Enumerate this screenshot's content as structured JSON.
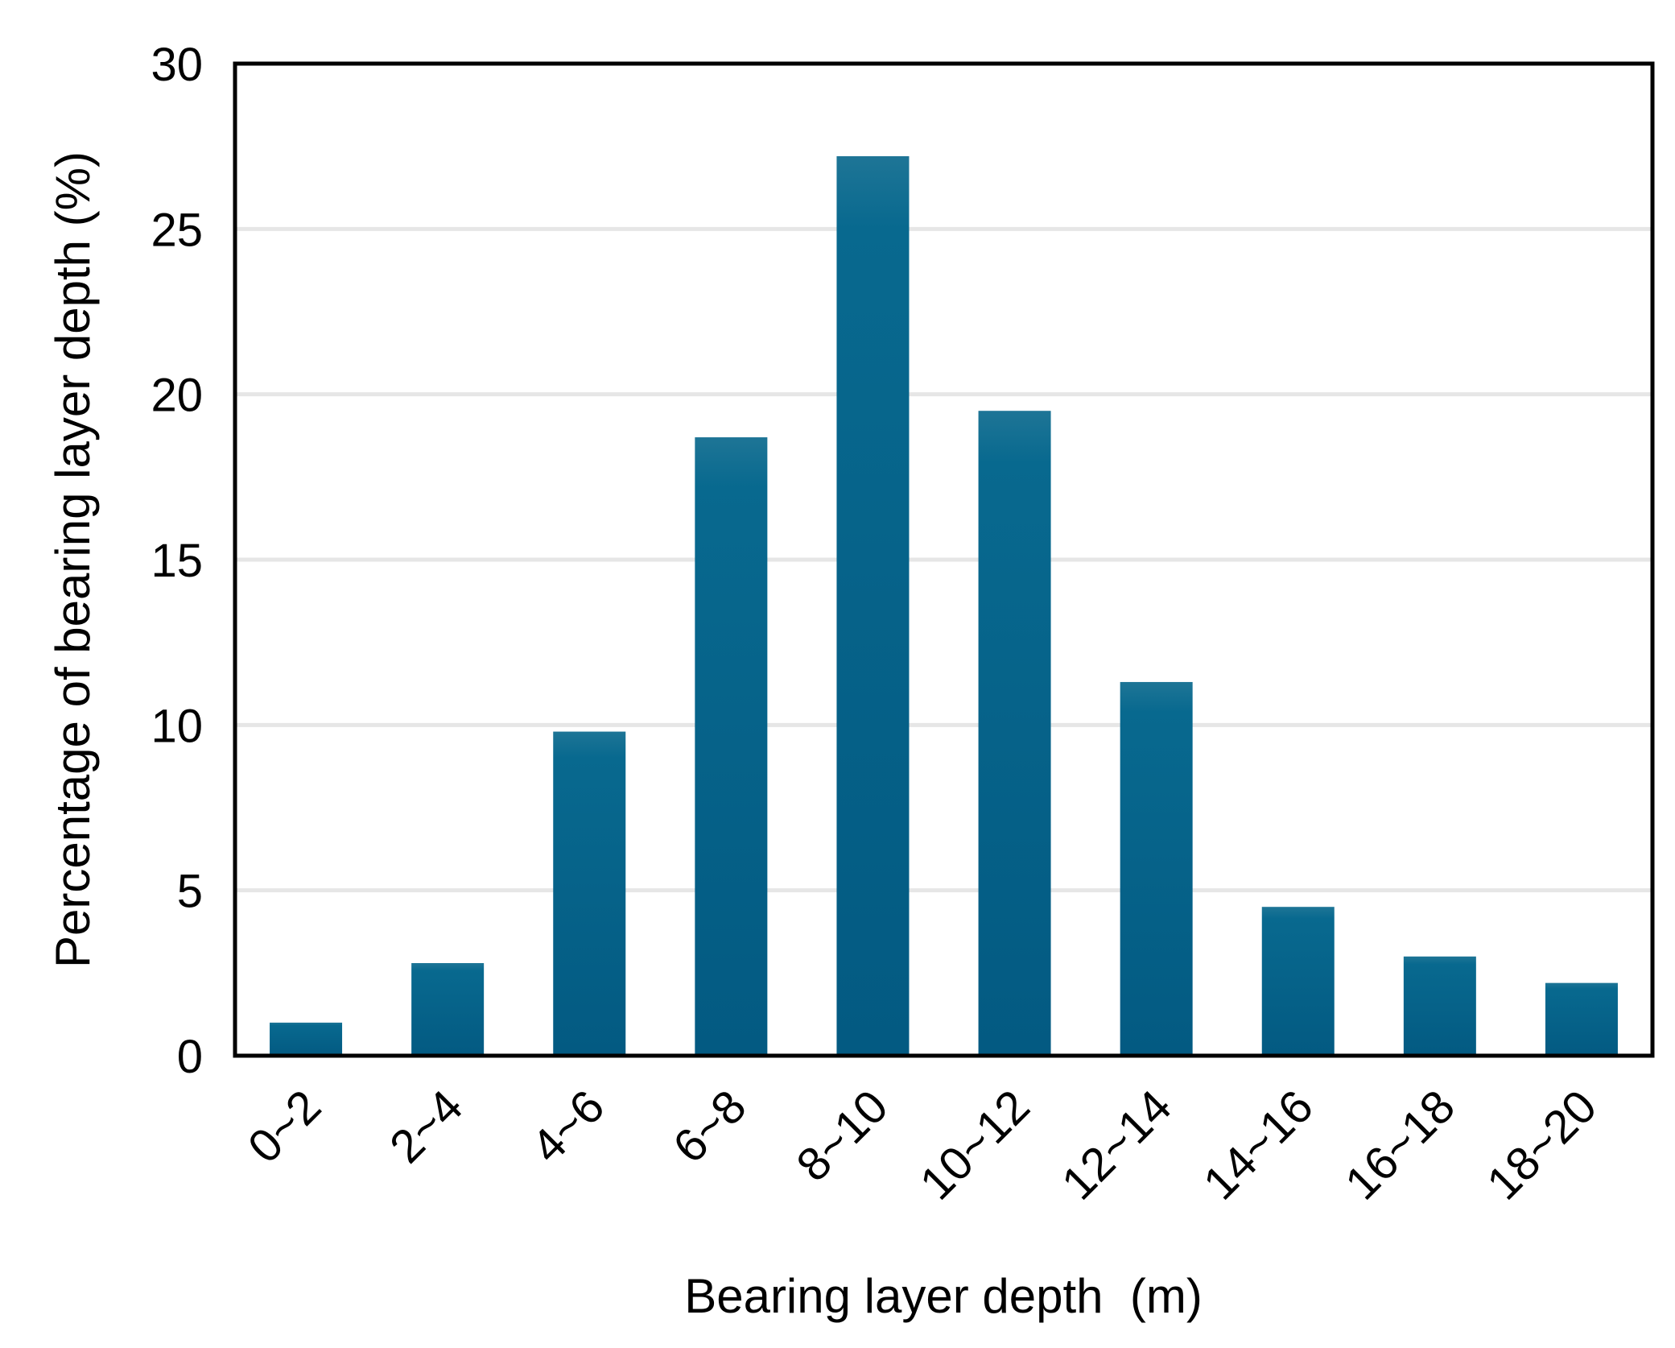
{
  "chart_data": {
    "type": "bar",
    "title": "",
    "xlabel": "Bearing layer depth  (m)",
    "ylabel": "Percentage of bearing layer depth (%)",
    "categories": [
      "0~2",
      "2~4",
      "4~6",
      "6~8",
      "8~10",
      "10~12",
      "12~14",
      "14~16",
      "16~18",
      "18~20"
    ],
    "values": [
      1.0,
      2.8,
      9.8,
      18.7,
      27.2,
      19.5,
      11.3,
      4.5,
      3.0,
      2.2
    ],
    "ylim": [
      0,
      30
    ],
    "yticks": [
      "0",
      "5",
      "10",
      "15",
      "20",
      "25",
      "30"
    ],
    "grid": true,
    "legend": "none",
    "colors": {
      "bar_top": "#1e7596",
      "bar_bottom": "#035a82",
      "grid": "#e6e6e6",
      "axis": "#000000"
    }
  }
}
